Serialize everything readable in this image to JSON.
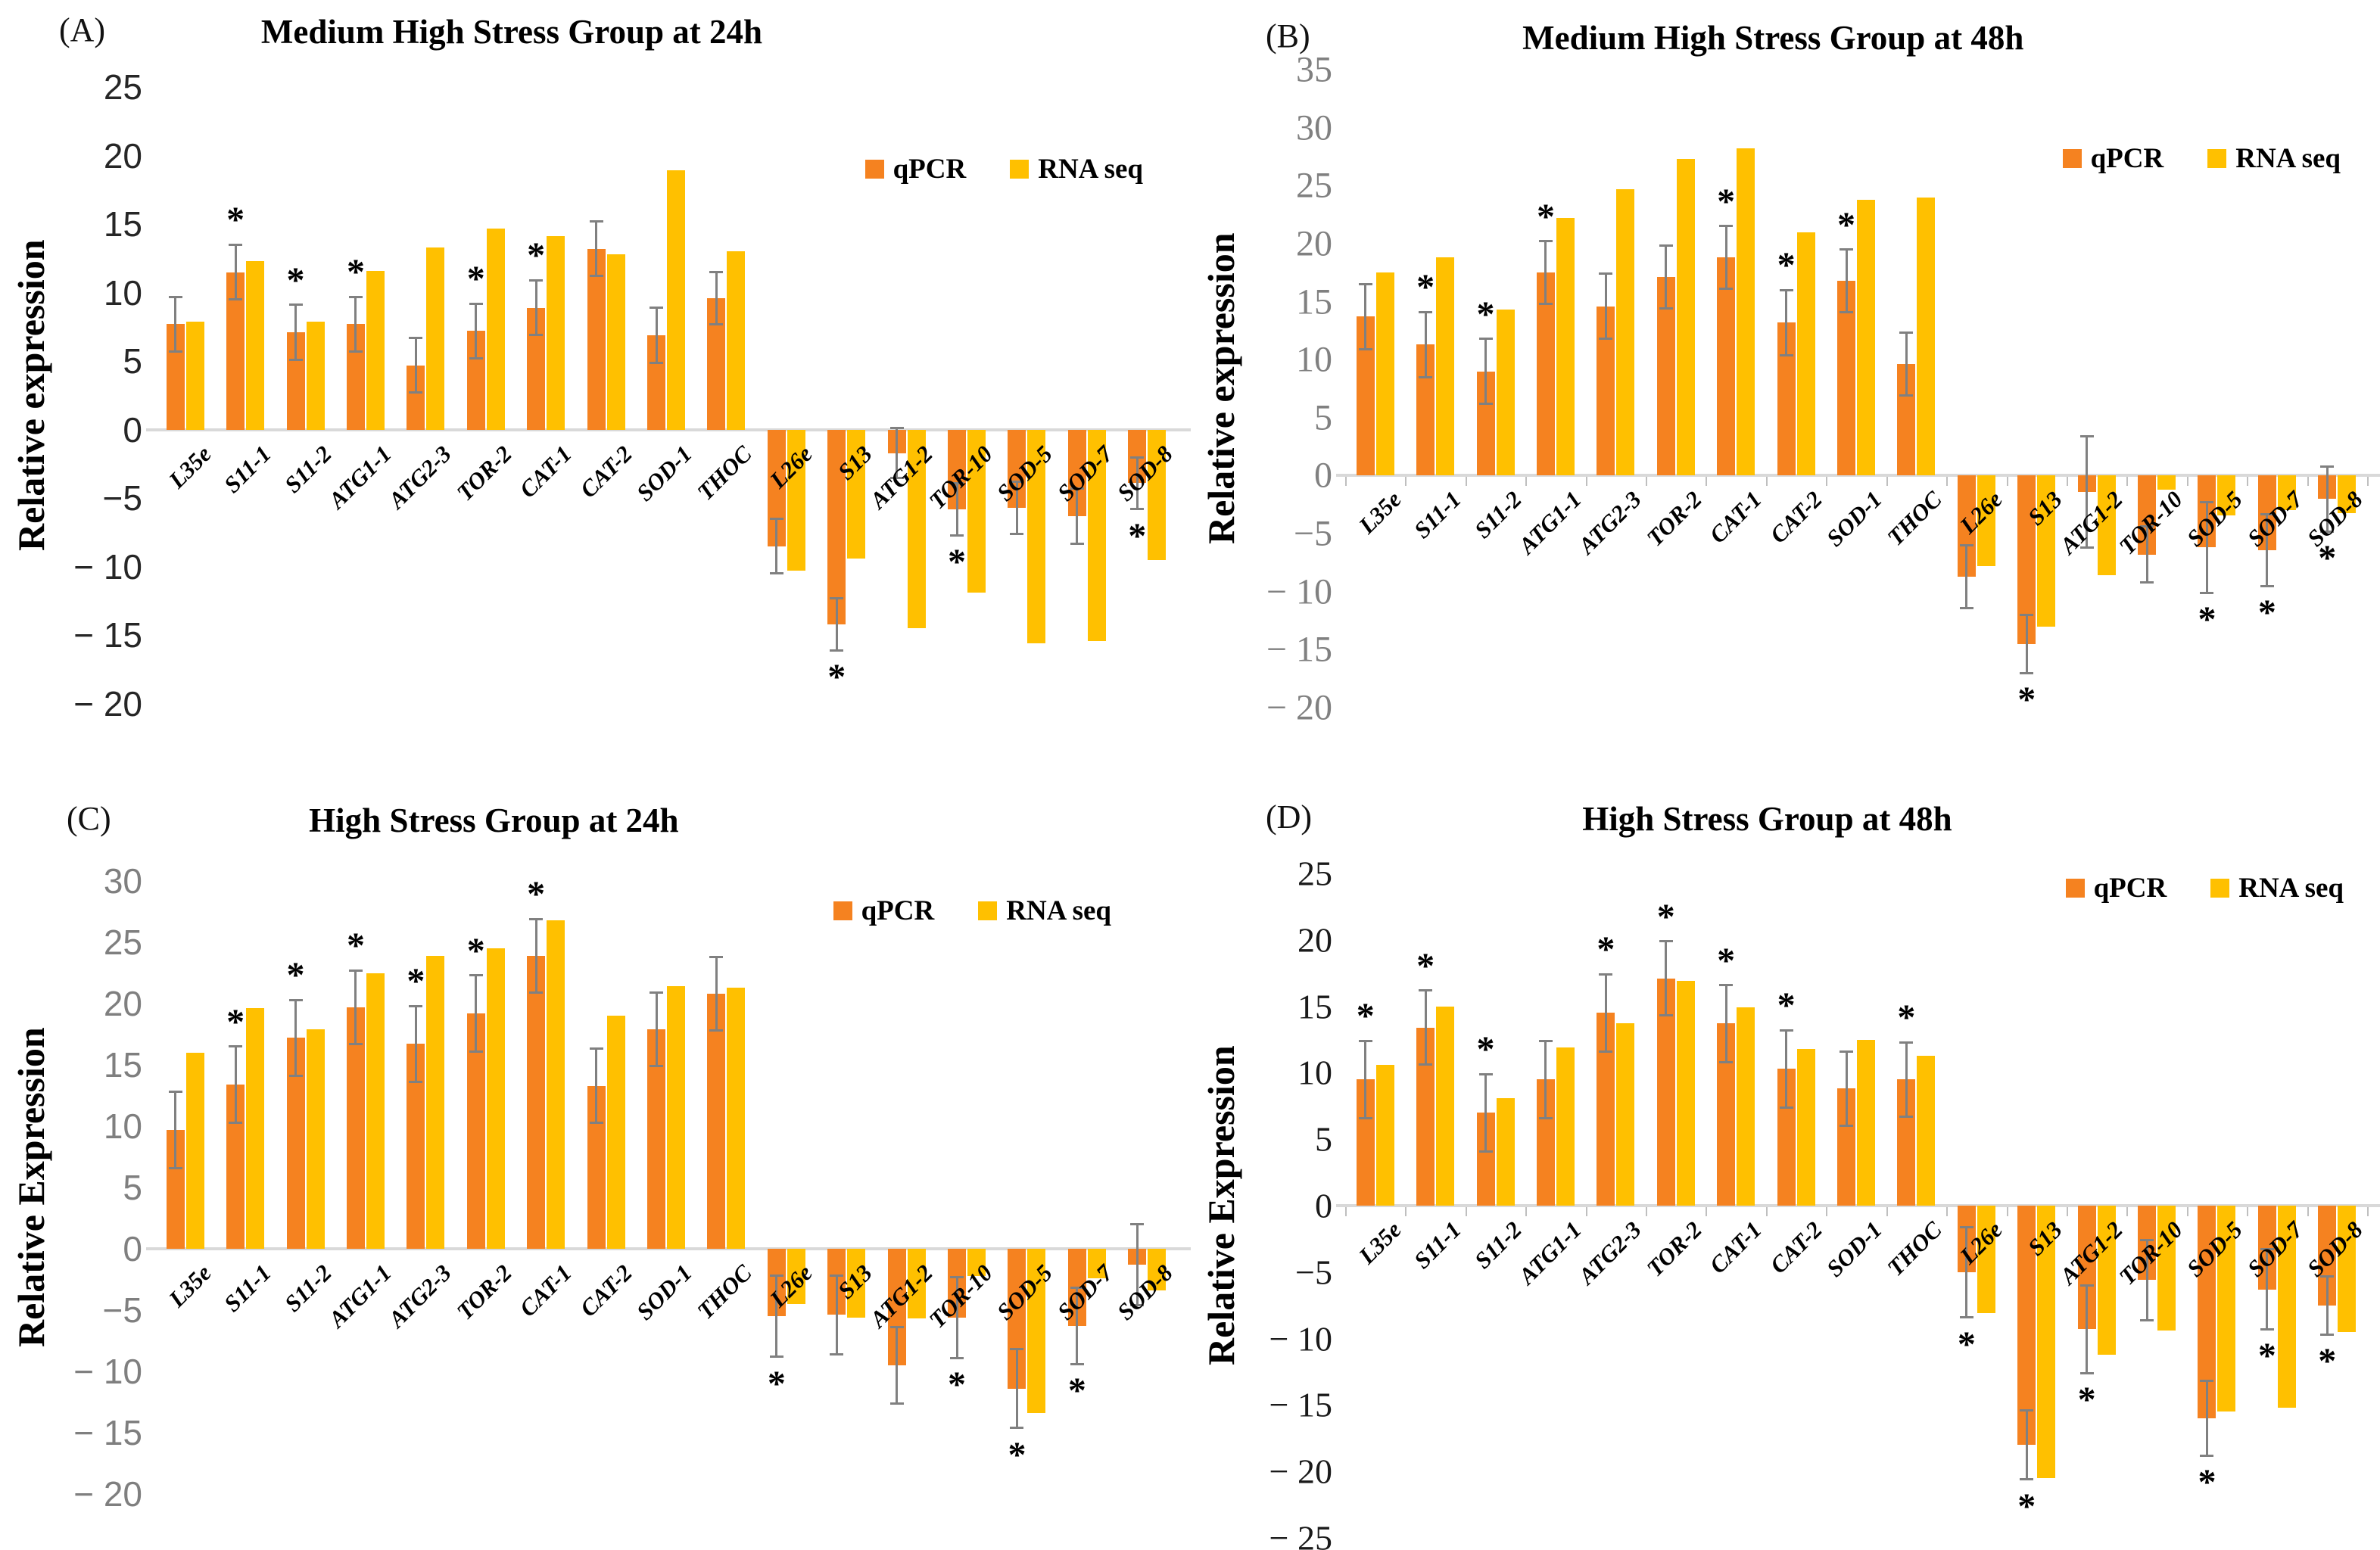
{
  "figure_legend": {
    "qpcr_label": "qPCR",
    "rna_label": "RNA seq"
  },
  "colors": {
    "qpcr": "#F58220",
    "rna_seq": "#FFC000",
    "error_bar": "#808080",
    "baseline": "#D9D9D9",
    "tick_black": "#1f1f1f",
    "tick_gray": "#808080"
  },
  "chart_data": [
    {
      "type": "bar",
      "panel_label": "(A)",
      "title": "Medium High Stress Group at 24h",
      "ylabel": "Relative expression",
      "ylim": [
        -20,
        25
      ],
      "yticks": [
        25,
        20,
        15,
        10,
        5,
        0,
        -5,
        -10,
        -15,
        -20
      ],
      "ytick_text": [
        "25",
        "20",
        "15",
        "10",
        "5",
        "0",
        "−5",
        "− 10",
        "− 15",
        "− 20"
      ],
      "tick_style": {
        "color": "#262626",
        "family": "sans",
        "size": 46
      },
      "baseline_ticks": false,
      "grid": false,
      "legend_position": "top-right",
      "categories": [
        "L35e",
        "S11-1",
        "S11-2",
        "ATG1-1",
        "ATG2-3",
        "TOR-2",
        "CAT-1",
        "CAT-2",
        "SOD-1",
        "THOC",
        "L26e",
        "S13",
        "ATG1-2",
        "TOR-10",
        "SOD-5",
        "SOD-7",
        "SOD-8"
      ],
      "series": [
        {
          "name": "qPCR",
          "values": [
            7.7,
            11.5,
            7.1,
            7.7,
            4.7,
            7.2,
            8.9,
            13.2,
            6.9,
            9.6,
            -8.5,
            -14.2,
            -1.7,
            -5.8,
            -5.7,
            -6.3,
            -3.9
          ],
          "errors": [
            2.0,
            2.0,
            2.0,
            2.0,
            2.0,
            2.0,
            2.0,
            2.0,
            2.0,
            1.9,
            2.0,
            1.9,
            1.8,
            1.9,
            1.9,
            2.0,
            1.9
          ]
        },
        {
          "name": "RNA seq",
          "values": [
            7.9,
            12.3,
            7.9,
            11.6,
            13.3,
            14.7,
            14.1,
            12.8,
            18.9,
            13.0,
            -10.3,
            -9.4,
            -14.5,
            -11.9,
            -15.6,
            -15.4,
            -9.5
          ]
        }
      ],
      "significant": [
        "S11-1",
        "S11-2",
        "ATG1-1",
        "TOR-2",
        "CAT-1",
        "S13",
        "TOR-10",
        "SOD-8"
      ]
    },
    {
      "type": "bar",
      "panel_label": "(B)",
      "title": "Medium High Stress Group at 48h",
      "ylabel": "Relative expression",
      "ylim": [
        -20,
        35
      ],
      "yticks": [
        35,
        30,
        25,
        20,
        15,
        10,
        5,
        0,
        -5,
        -10,
        -15,
        -20
      ],
      "ytick_text": [
        "35",
        "30",
        "25",
        "20",
        "15",
        "10",
        "5",
        "0",
        "−5",
        "− 10",
        "− 15",
        "− 20"
      ],
      "tick_style": {
        "color": "#808080",
        "family": "serif",
        "size": 48
      },
      "baseline_ticks": true,
      "grid": false,
      "legend_position": "top-right",
      "categories": [
        "L35e",
        "S11-1",
        "S11-2",
        "ATG1-1",
        "ATG2-3",
        "TOR-2",
        "CAT-1",
        "CAT-2",
        "SOD-1",
        "THOC",
        "L26e",
        "S13",
        "ATG1-2",
        "TOR-10",
        "SOD-5",
        "SOD-7",
        "SOD-8"
      ],
      "series": [
        {
          "name": "qPCR",
          "values": [
            13.7,
            11.3,
            9.0,
            17.5,
            14.6,
            17.1,
            18.8,
            13.2,
            16.8,
            9.6,
            -8.7,
            -14.5,
            -1.4,
            -6.8,
            -6.2,
            -6.4,
            -2.0
          ],
          "errors": [
            2.8,
            2.8,
            2.8,
            2.7,
            2.8,
            2.7,
            2.7,
            2.8,
            2.7,
            2.7,
            2.7,
            2.5,
            4.8,
            2.4,
            3.9,
            3.1,
            2.8
          ]
        },
        {
          "name": "RNA seq",
          "values": [
            17.5,
            18.8,
            14.3,
            22.2,
            24.7,
            27.3,
            28.2,
            21.0,
            23.8,
            24.0,
            -7.8,
            -13.0,
            -8.6,
            -1.2,
            -3.4,
            -3.0,
            -3.2
          ]
        }
      ],
      "significant": [
        "S11-1",
        "S11-2",
        "ATG1-1",
        "CAT-1",
        "CAT-2",
        "SOD-1",
        "S13",
        "SOD-5",
        "SOD-7",
        "SOD-8"
      ]
    },
    {
      "type": "bar",
      "panel_label": "(C)",
      "title": "High Stress Group at 24h",
      "ylabel": "Relative Expression",
      "ylim": [
        -20,
        30
      ],
      "yticks": [
        30,
        25,
        20,
        15,
        10,
        5,
        0,
        -5,
        -10,
        -15,
        -20
      ],
      "ytick_text": [
        "30",
        "25",
        "20",
        "15",
        "10",
        "5",
        "0",
        "−5",
        "− 10",
        "− 15",
        "− 20"
      ],
      "tick_style": {
        "color": "#7f7f7f",
        "family": "sans",
        "size": 46
      },
      "baseline_ticks": false,
      "grid": false,
      "legend_position": "top-right",
      "categories": [
        "L35e",
        "S11-1",
        "S11-2",
        "ATG1-1",
        "ATG2-3",
        "TOR-2",
        "CAT-1",
        "CAT-2",
        "SOD-1",
        "THOC",
        "L26e",
        "S13",
        "ATG1-2",
        "TOR-10",
        "SOD-5",
        "SOD-7",
        "SOD-8"
      ],
      "series": [
        {
          "name": "qPCR",
          "values": [
            9.7,
            13.4,
            17.2,
            19.7,
            16.7,
            19.2,
            23.9,
            13.3,
            17.9,
            20.8,
            -5.5,
            -5.4,
            -9.5,
            -5.6,
            -11.4,
            -6.3,
            -1.3
          ],
          "errors": [
            3.1,
            3.1,
            3.1,
            3.0,
            3.1,
            3.1,
            3.0,
            3.0,
            3.0,
            3.0,
            3.3,
            3.2,
            3.1,
            3.3,
            3.2,
            3.1,
            3.3
          ]
        },
        {
          "name": "RNA seq",
          "values": [
            16.0,
            19.6,
            17.9,
            22.5,
            23.9,
            24.5,
            26.8,
            19.0,
            21.4,
            21.3,
            -4.5,
            -5.6,
            -5.7,
            -2.2,
            -13.4,
            -2.4,
            -3.4
          ]
        }
      ],
      "significant": [
        "S11-1",
        "S11-2",
        "ATG1-1",
        "ATG2-3",
        "TOR-2",
        "CAT-1",
        "L26e",
        "TOR-10",
        "SOD-5",
        "SOD-7"
      ]
    },
    {
      "type": "bar",
      "panel_label": "(D)",
      "title": "High Stress Group at 48h",
      "ylabel": "Relative Expression",
      "ylim": [
        -25,
        25
      ],
      "yticks": [
        25,
        20,
        15,
        10,
        5,
        0,
        -5,
        -10,
        -15,
        -20,
        -25
      ],
      "ytick_text": [
        "25",
        "20",
        "15",
        "10",
        "5",
        "0",
        "−5",
        "− 10",
        "− 15",
        "− 20",
        "− 25"
      ],
      "tick_style": {
        "color": "#1a1a1a",
        "family": "serif",
        "size": 46
      },
      "baseline_ticks": true,
      "grid": false,
      "legend_position": "top-right",
      "categories": [
        "L35e",
        "S11-1",
        "S11-2",
        "ATG1-1",
        "ATG2-3",
        "TOR-2",
        "CAT-1",
        "CAT-2",
        "SOD-1",
        "THOC",
        "L26e",
        "S13",
        "ATG1-2",
        "TOR-10",
        "SOD-5",
        "SOD-7",
        "SOD-8"
      ],
      "series": [
        {
          "name": "qPCR",
          "values": [
            9.5,
            13.4,
            7.0,
            9.5,
            14.5,
            17.1,
            13.7,
            10.3,
            8.8,
            9.5,
            -5.0,
            -18.0,
            -9.3,
            -5.6,
            -16.0,
            -6.3,
            -7.5
          ],
          "errors": [
            2.9,
            2.8,
            2.9,
            2.9,
            2.9,
            2.8,
            2.9,
            2.9,
            2.8,
            2.8,
            3.4,
            2.6,
            3.3,
            3.0,
            2.8,
            3.0,
            2.2
          ]
        },
        {
          "name": "RNA seq",
          "values": [
            10.6,
            15.0,
            8.1,
            11.9,
            13.7,
            16.9,
            14.9,
            11.8,
            12.5,
            11.3,
            -8.1,
            -20.5,
            -11.2,
            -9.4,
            -15.5,
            -15.2,
            -9.5
          ]
        }
      ],
      "significant": [
        "L35e",
        "S11-1",
        "S11-2",
        "ATG2-3",
        "TOR-2",
        "CAT-1",
        "CAT-2",
        "THOC",
        "L26e",
        "S13",
        "ATG1-2",
        "SOD-5",
        "SOD-7",
        "SOD-8"
      ]
    }
  ]
}
